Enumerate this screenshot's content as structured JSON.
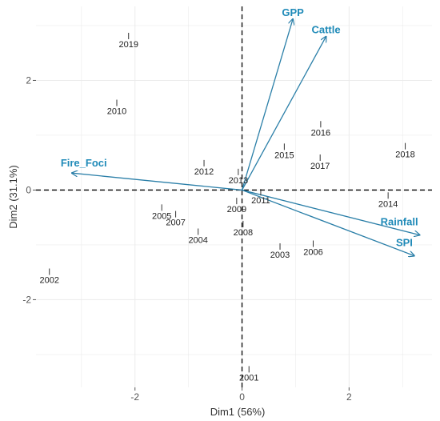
{
  "chart_data": {
    "type": "scatter",
    "subtype": "pca-biplot",
    "xlabel": "Dim1 (56%)",
    "ylabel": "Dim2 (31.1%)",
    "xlim": [
      -3.85,
      3.55
    ],
    "ylim": [
      -3.6,
      3.35
    ],
    "xticks": [
      {
        "value": -2,
        "label": "-2"
      },
      {
        "value": 0,
        "label": "0"
      },
      {
        "value": 2,
        "label": "2"
      }
    ],
    "yticks": [
      {
        "value": -2,
        "label": "-2"
      },
      {
        "value": 0,
        "label": "0"
      },
      {
        "value": 2,
        "label": "2"
      }
    ],
    "grid": true,
    "reference_lines": {
      "x": 0,
      "y": 0,
      "style": "dashed"
    },
    "colors": {
      "arrow": "#2b7fa8",
      "arrow_label": "#1f8ab8",
      "point": "#333333",
      "grid": "#ebebeb",
      "reference": "#000000"
    },
    "points": [
      {
        "label": "2001",
        "x": 0.13,
        "y": -3.27
      },
      {
        "label": "2002",
        "x": -3.6,
        "y": -1.49
      },
      {
        "label": "2003",
        "x": 0.71,
        "y": -1.03
      },
      {
        "label": "2004",
        "x": -0.82,
        "y": -0.76
      },
      {
        "label": "2005",
        "x": -1.5,
        "y": -0.32
      },
      {
        "label": "2006",
        "x": 1.33,
        "y": -0.98
      },
      {
        "label": "2007",
        "x": -1.24,
        "y": -0.44
      },
      {
        "label": "2008",
        "x": 0.02,
        "y": -0.62
      },
      {
        "label": "2009",
        "x": -0.1,
        "y": -0.2
      },
      {
        "label": "2010",
        "x": -2.34,
        "y": 1.59
      },
      {
        "label": "2011",
        "x": 0.35,
        "y": -0.04
      },
      {
        "label": "2012",
        "x": -0.71,
        "y": 0.49
      },
      {
        "label": "2013",
        "x": -0.07,
        "y": 0.33
      },
      {
        "label": "2014",
        "x": 2.73,
        "y": -0.1
      },
      {
        "label": "2015",
        "x": 0.79,
        "y": 0.79
      },
      {
        "label": "2016",
        "x": 1.47,
        "y": 1.2
      },
      {
        "label": "2017",
        "x": 1.46,
        "y": 0.59
      },
      {
        "label": "2018",
        "x": 3.05,
        "y": 0.8
      },
      {
        "label": "2019",
        "x": -2.12,
        "y": 2.81
      }
    ],
    "arrows": [
      {
        "label": "GPP",
        "x": 0.95,
        "y": 3.12
      },
      {
        "label": "Cattle",
        "x": 1.57,
        "y": 2.8
      },
      {
        "label": "Fire_Foci",
        "x": -3.18,
        "y": 0.31
      },
      {
        "label": "Rainfall",
        "x": 3.32,
        "y": -0.82
      },
      {
        "label": "SPI",
        "x": 3.22,
        "y": -1.2
      }
    ]
  }
}
